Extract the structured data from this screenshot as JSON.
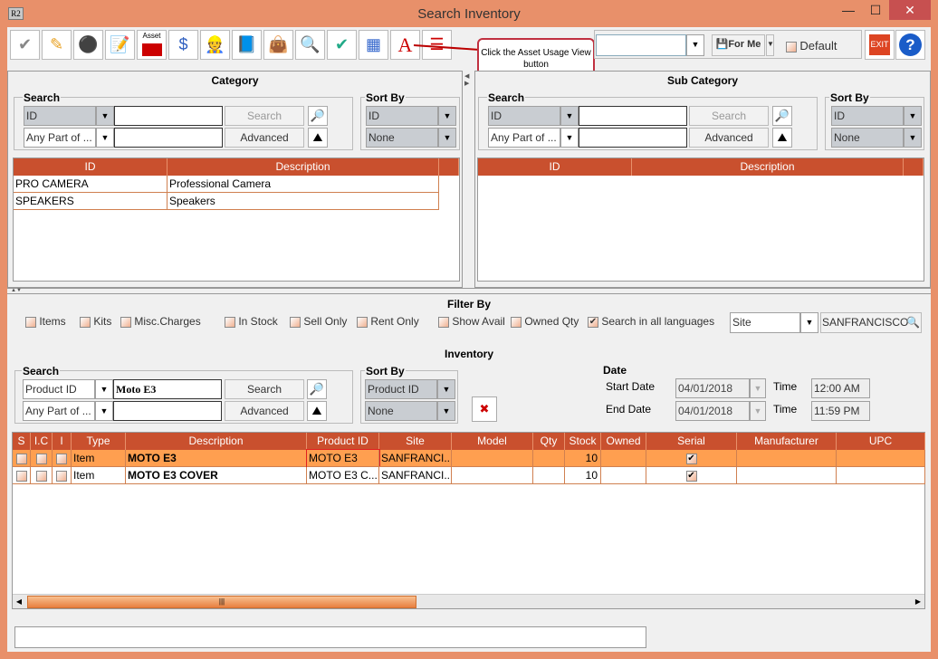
{
  "window": {
    "title": "Search Inventory",
    "app_icon": "R2",
    "minimize": "—",
    "maximize": "☐",
    "close": "✕"
  },
  "toolbar": {
    "icons": [
      "checkmark-icon",
      "pencil-icon",
      "kits-icon",
      "notepad-edit-icon",
      "asset-icon",
      "price-tag-icon",
      "contractor-pay-icon",
      "book-icon",
      "shopping-bag-icon",
      "search-folder-icon",
      "price-approve-icon",
      "grid-select-icon",
      "asset-usage-view-icon",
      "bars-view-icon"
    ],
    "asset_label": "Asset",
    "saved_search_value": "",
    "for_me_label": "For Me",
    "default_label": "Default",
    "exit_label": "EXIT",
    "help_label": "?"
  },
  "callout": {
    "text": "Click the Asset Usage View button"
  },
  "category": {
    "title": "Category",
    "search_label": "Search",
    "field": "ID",
    "match": "Any Part of ...",
    "search_value": "",
    "match_value": "",
    "search_btn": "Search",
    "advanced_btn": "Advanced",
    "sort_label": "Sort By",
    "sort1": "ID",
    "sort2": "None",
    "columns": [
      "ID",
      "Description"
    ],
    "rows": [
      [
        "PRO CAMERA",
        "Professional Camera"
      ],
      [
        "SPEAKERS",
        "Speakers"
      ]
    ]
  },
  "subcategory": {
    "title": "Sub Category",
    "search_label": "Search",
    "field": "ID",
    "match": "Any Part of ...",
    "search_btn": "Search",
    "advanced_btn": "Advanced",
    "sort_label": "Sort By",
    "sort1": "ID",
    "sort2": "None",
    "columns": [
      "ID",
      "Description"
    ]
  },
  "filter": {
    "title": "Filter By",
    "options": [
      {
        "label": "Items",
        "checked": false
      },
      {
        "label": "Kits",
        "checked": false
      },
      {
        "label": "Misc.Charges",
        "checked": false
      },
      {
        "label": "In Stock",
        "checked": false
      },
      {
        "label": "Sell Only",
        "checked": false
      },
      {
        "label": "Rent Only",
        "checked": false
      },
      {
        "label": "Show Avail",
        "checked": false
      },
      {
        "label": "Owned Qty",
        "checked": false
      },
      {
        "label": "Search in all languages",
        "checked": true
      }
    ],
    "scope": "Site",
    "scope_value": "SANFRANCISCO"
  },
  "inventory": {
    "title": "Inventory",
    "search_label": "Search",
    "field": "Product ID",
    "search_value": "Moto E3",
    "match": "Any Part of ...",
    "match_value": "",
    "search_btn": "Search",
    "advanced_btn": "Advanced",
    "sort_label": "Sort By",
    "sort1": "Product ID",
    "sort2": "None",
    "date_label": "Date",
    "start_label": "Start Date",
    "start_date": "04/01/2018",
    "end_label": "End Date",
    "end_date": "04/01/2018",
    "time_label": "Time",
    "start_time": "12:00 AM",
    "end_time": "11:59 PM",
    "columns": [
      "S",
      "I.C",
      "I",
      "Type",
      "Description",
      "Product ID",
      "Site",
      "Model",
      "Qty",
      "Stock",
      "Owned",
      "Serial",
      "Manufacturer",
      "UPC"
    ],
    "rows": [
      {
        "type": "Item",
        "description": "MOTO E3",
        "product_id": "MOTO E3",
        "site": "SANFRANCI...",
        "model": "",
        "qty": "",
        "stock": "10",
        "owned": "",
        "serial": true,
        "manufacturer": "",
        "upc": ""
      },
      {
        "type": "Item",
        "description": "MOTO E3 COVER",
        "product_id": "MOTO E3 C...",
        "site": "SANFRANCI...",
        "model": "",
        "qty": "",
        "stock": "10",
        "owned": "",
        "serial": true,
        "manufacturer": "",
        "upc": ""
      }
    ]
  },
  "status": {
    "value": ""
  },
  "colors": {
    "header": "#C9502E",
    "selected_row": "#FF9F50",
    "frame": "#E8906A"
  }
}
